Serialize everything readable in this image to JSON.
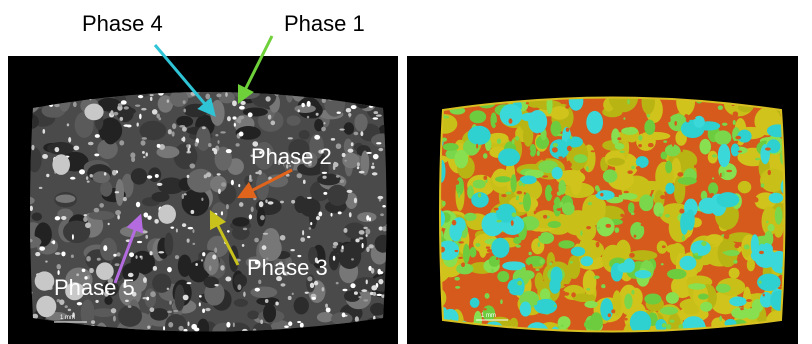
{
  "annotations": [
    {
      "label": "Phase 4"
    },
    {
      "label": "Phase 1"
    },
    {
      "label": "Phase 2"
    },
    {
      "label": "Phase 3"
    },
    {
      "label": "Phase 5"
    }
  ],
  "scale_bars": [
    {
      "label": "1 mm"
    },
    {
      "label": "1 mm"
    }
  ]
}
